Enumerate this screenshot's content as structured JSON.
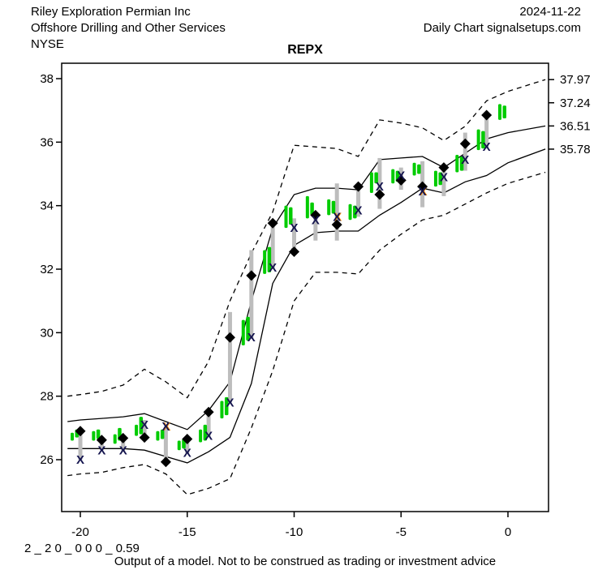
{
  "header": {
    "company": "Riley Exploration Permian Inc",
    "industry": "Offshore Drilling and Other Services",
    "exchange": "NYSE",
    "date": "2024-11-22",
    "chart_type": "Daily Chart signalsetups.com"
  },
  "footer": {
    "model_code": "2 _ 2 0 _ 0 0 0 _ 0.59",
    "disclaimer": "Output of a model. Not to be construed as trading or investment advice"
  },
  "chart_data": {
    "type": "candlestick_with_bands",
    "title": "REPX",
    "xlabel": "",
    "ylabel": "",
    "xlim": [
      -21.9,
      1.9
    ],
    "ylim": [
      24.4,
      38.5
    ],
    "grid": false,
    "x_ticks": [
      -20,
      -15,
      -10,
      -5,
      0
    ],
    "y_ticks_left": [
      38,
      36,
      34,
      32,
      30,
      28,
      26
    ],
    "y_ticks_right": [
      "37.97",
      "37.24",
      "36.51",
      "35.78"
    ],
    "colors": {
      "candle": "#00cc00",
      "range_bar": "#bdbdbd",
      "diamond": "#000000",
      "x_mark": "#14144e",
      "x_mark_alt": "#ff8c00",
      "line": "#000000",
      "background": "#ffffff"
    },
    "bars": [
      {
        "x": -20,
        "candle1": [
          26.6,
          26.85
        ],
        "candle2": [
          26.7,
          26.95
        ],
        "range": [
          26.0,
          26.9
        ],
        "diamond": 26.9,
        "x_mark": 26.0,
        "x_mark2": false
      },
      {
        "x": -19,
        "candle1": [
          26.6,
          26.9
        ],
        "candle2": [
          26.65,
          26.95
        ],
        "range": [
          26.3,
          26.65
        ],
        "diamond": 26.62,
        "x_mark": 26.3,
        "x_mark2": false
      },
      {
        "x": -18,
        "candle1": [
          26.5,
          26.8
        ],
        "candle2": [
          26.6,
          27.0
        ],
        "range": [
          26.25,
          26.7
        ],
        "diamond": 26.68,
        "x_mark": 26.3,
        "x_mark2": false
      },
      {
        "x": -17,
        "candle1": [
          26.75,
          27.1
        ],
        "candle2": [
          26.8,
          27.35
        ],
        "range": [
          26.65,
          27.25
        ],
        "diamond": 26.7,
        "x_mark": 27.1,
        "x_mark2": false
      },
      {
        "x": -16,
        "candle1": [
          26.6,
          26.9
        ],
        "candle2": [
          26.65,
          26.95
        ],
        "range": [
          25.95,
          27.05
        ],
        "diamond": 25.93,
        "x_mark": 27.05,
        "x_mark2": true
      },
      {
        "x": -15,
        "candle1": [
          26.3,
          26.6
        ],
        "candle2": [
          26.35,
          26.65
        ],
        "range": [
          26.2,
          26.7
        ],
        "diamond": 26.65,
        "x_mark": 26.22,
        "x_mark2": false
      },
      {
        "x": -14,
        "candle1": [
          26.55,
          26.95
        ],
        "candle2": [
          26.6,
          27.1
        ],
        "range": [
          26.7,
          27.5
        ],
        "diamond": 27.5,
        "x_mark": 26.75,
        "x_mark2": false
      },
      {
        "x": -13,
        "candle1": [
          27.3,
          27.85
        ],
        "candle2": [
          27.4,
          27.97
        ],
        "range": [
          27.8,
          30.65
        ],
        "diamond": 29.85,
        "x_mark": 27.8,
        "x_mark2": false
      },
      {
        "x": -12,
        "candle1": [
          29.6,
          30.4
        ],
        "candle2": [
          29.75,
          30.5
        ],
        "range": [
          29.8,
          32.6
        ],
        "diamond": 31.8,
        "x_mark": 29.85,
        "x_mark2": false
      },
      {
        "x": -11,
        "candle1": [
          31.85,
          32.6
        ],
        "candle2": [
          31.9,
          32.7
        ],
        "range": [
          32.0,
          33.45
        ],
        "diamond": 33.45,
        "x_mark": 32.05,
        "x_mark2": false
      },
      {
        "x": -10,
        "candle1": [
          33.3,
          34.0
        ],
        "candle2": [
          33.4,
          33.95
        ],
        "range": [
          32.45,
          33.6
        ],
        "diamond": 32.55,
        "x_mark": 33.3,
        "x_mark2": false
      },
      {
        "x": -9,
        "candle1": [
          33.6,
          34.3
        ],
        "candle2": [
          33.7,
          34.1
        ],
        "range": [
          32.9,
          33.75
        ],
        "diamond": 33.7,
        "x_mark": 33.55,
        "x_mark2": false
      },
      {
        "x": -8,
        "candle1": [
          33.7,
          34.2
        ],
        "candle2": [
          33.75,
          34.15
        ],
        "range": [
          32.9,
          34.7
        ],
        "diamond": 33.4,
        "x_mark": 33.65,
        "x_mark2": true
      },
      {
        "x": -7,
        "candle1": [
          33.55,
          34.05
        ],
        "candle2": [
          33.6,
          34.0
        ],
        "range": [
          33.65,
          34.6
        ],
        "diamond": 34.6,
        "x_mark": 33.85,
        "x_mark2": false
      },
      {
        "x": -6,
        "candle1": [
          34.4,
          35.05
        ],
        "candle2": [
          34.7,
          35.05
        ],
        "range": [
          33.9,
          35.5
        ],
        "diamond": 34.35,
        "x_mark": 34.6,
        "x_mark2": false
      },
      {
        "x": -5,
        "candle1": [
          34.7,
          35.15
        ],
        "candle2": [
          34.75,
          35.1
        ],
        "range": [
          34.5,
          35.2
        ],
        "diamond": 34.8,
        "x_mark": 34.95,
        "x_mark2": false
      },
      {
        "x": -4,
        "candle1": [
          34.95,
          35.35
        ],
        "candle2": [
          35.0,
          35.3
        ],
        "range": [
          33.95,
          35.4
        ],
        "diamond": 34.6,
        "x_mark": 34.45,
        "x_mark2": true
      },
      {
        "x": -3,
        "candle1": [
          34.6,
          35.1
        ],
        "candle2": [
          34.65,
          35.05
        ],
        "range": [
          34.3,
          35.25
        ],
        "diamond": 35.2,
        "x_mark": 34.9,
        "x_mark2": false
      },
      {
        "x": -2,
        "candle1": [
          35.05,
          35.6
        ],
        "candle2": [
          35.1,
          35.55
        ],
        "range": [
          35.1,
          36.3
        ],
        "diamond": 35.95,
        "x_mark": 35.45,
        "x_mark2": false
      },
      {
        "x": -1,
        "candle1": [
          35.75,
          36.4
        ],
        "candle2": [
          35.8,
          36.35
        ],
        "range": [
          35.8,
          36.88
        ],
        "diamond": 36.85,
        "x_mark": 35.85,
        "x_mark2": false
      },
      {
        "x": 0,
        "candle1": [
          36.7,
          37.2
        ],
        "candle2": [
          36.75,
          37.15
        ],
        "range": null,
        "diamond": null,
        "x_mark": null,
        "x_mark2": false
      }
    ],
    "lines": {
      "outer_upper": {
        "style": "dashed",
        "points": [
          [
            -20.6,
            28.0
          ],
          [
            -20,
            28.05
          ],
          [
            -19,
            28.15
          ],
          [
            -18,
            28.35
          ],
          [
            -17,
            28.85
          ],
          [
            -16,
            28.45
          ],
          [
            -15,
            27.95
          ],
          [
            -14,
            29.1
          ],
          [
            -13,
            31.0
          ],
          [
            -12,
            32.5
          ],
          [
            -11,
            33.8
          ],
          [
            -10,
            35.9
          ],
          [
            -9,
            35.85
          ],
          [
            -8,
            35.8
          ],
          [
            -7,
            35.55
          ],
          [
            -6,
            36.7
          ],
          [
            -5,
            36.6
          ],
          [
            -4,
            36.45
          ],
          [
            -3,
            36.05
          ],
          [
            -2,
            36.5
          ],
          [
            -1,
            37.3
          ],
          [
            0,
            37.6
          ],
          [
            1.75,
            37.97
          ]
        ]
      },
      "inner_upper": {
        "style": "solid",
        "points": [
          [
            -20.6,
            27.2
          ],
          [
            -20,
            27.25
          ],
          [
            -19,
            27.3
          ],
          [
            -18,
            27.35
          ],
          [
            -17,
            27.45
          ],
          [
            -16,
            27.2
          ],
          [
            -15,
            26.95
          ],
          [
            -14,
            27.55
          ],
          [
            -13,
            28.45
          ],
          [
            -12,
            31.0
          ],
          [
            -11,
            33.3
          ],
          [
            -10,
            34.35
          ],
          [
            -9,
            34.55
          ],
          [
            -8,
            34.55
          ],
          [
            -7,
            34.5
          ],
          [
            -6,
            35.45
          ],
          [
            -5,
            35.5
          ],
          [
            -4,
            35.55
          ],
          [
            -3,
            35.2
          ],
          [
            -2,
            35.65
          ],
          [
            -1,
            36.1
          ],
          [
            0,
            36.3
          ],
          [
            1.75,
            36.51
          ]
        ]
      },
      "inner_lower": {
        "style": "solid",
        "points": [
          [
            -20.6,
            26.35
          ],
          [
            -20,
            26.35
          ],
          [
            -19,
            26.35
          ],
          [
            -18,
            26.35
          ],
          [
            -17,
            26.3
          ],
          [
            -16,
            26.1
          ],
          [
            -15,
            25.9
          ],
          [
            -14,
            26.25
          ],
          [
            -13,
            26.7
          ],
          [
            -12,
            28.4
          ],
          [
            -11,
            31.55
          ],
          [
            -10,
            32.75
          ],
          [
            -9,
            33.15
          ],
          [
            -8,
            33.2
          ],
          [
            -7,
            33.2
          ],
          [
            -6,
            33.7
          ],
          [
            -5,
            34.1
          ],
          [
            -4,
            34.55
          ],
          [
            -3,
            34.4
          ],
          [
            -2,
            34.75
          ],
          [
            -1,
            34.95
          ],
          [
            0,
            35.35
          ],
          [
            1.75,
            35.78
          ]
        ]
      },
      "outer_lower": {
        "style": "dashed",
        "points": [
          [
            -20.6,
            25.5
          ],
          [
            -20,
            25.55
          ],
          [
            -19,
            25.6
          ],
          [
            -18,
            25.75
          ],
          [
            -17,
            25.85
          ],
          [
            -16,
            25.55
          ],
          [
            -15,
            24.9
          ],
          [
            -14,
            25.1
          ],
          [
            -13,
            25.4
          ],
          [
            -12,
            27.0
          ],
          [
            -11,
            28.8
          ],
          [
            -10,
            31.0
          ],
          [
            -9,
            31.9
          ],
          [
            -8,
            31.9
          ],
          [
            -7,
            31.85
          ],
          [
            -6,
            32.6
          ],
          [
            -5,
            33.1
          ],
          [
            -4,
            33.55
          ],
          [
            -3,
            33.7
          ],
          [
            -2,
            34.05
          ],
          [
            -1,
            34.4
          ],
          [
            0,
            34.7
          ],
          [
            1.75,
            35.05
          ]
        ]
      }
    }
  }
}
